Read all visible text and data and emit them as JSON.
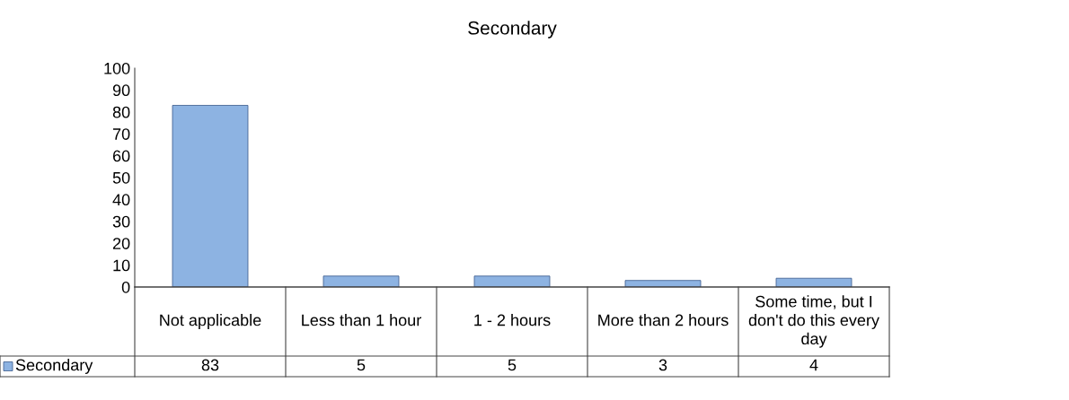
{
  "chart_data": {
    "type": "bar",
    "title": "Secondary",
    "categories": [
      "Not applicable",
      "Less than 1 hour",
      "1 - 2 hours",
      "More than 2 hours",
      "Some time, but I don't do this every day"
    ],
    "series": [
      {
        "name": "Secondary",
        "color": "#8db3e2",
        "values": [
          83,
          5,
          5,
          3,
          4
        ]
      }
    ],
    "ylim": [
      0,
      100
    ],
    "yticks": [
      0,
      10,
      20,
      30,
      40,
      50,
      60,
      70,
      80,
      90,
      100
    ],
    "data_labels": true,
    "legend": "bottom",
    "grid": false
  }
}
